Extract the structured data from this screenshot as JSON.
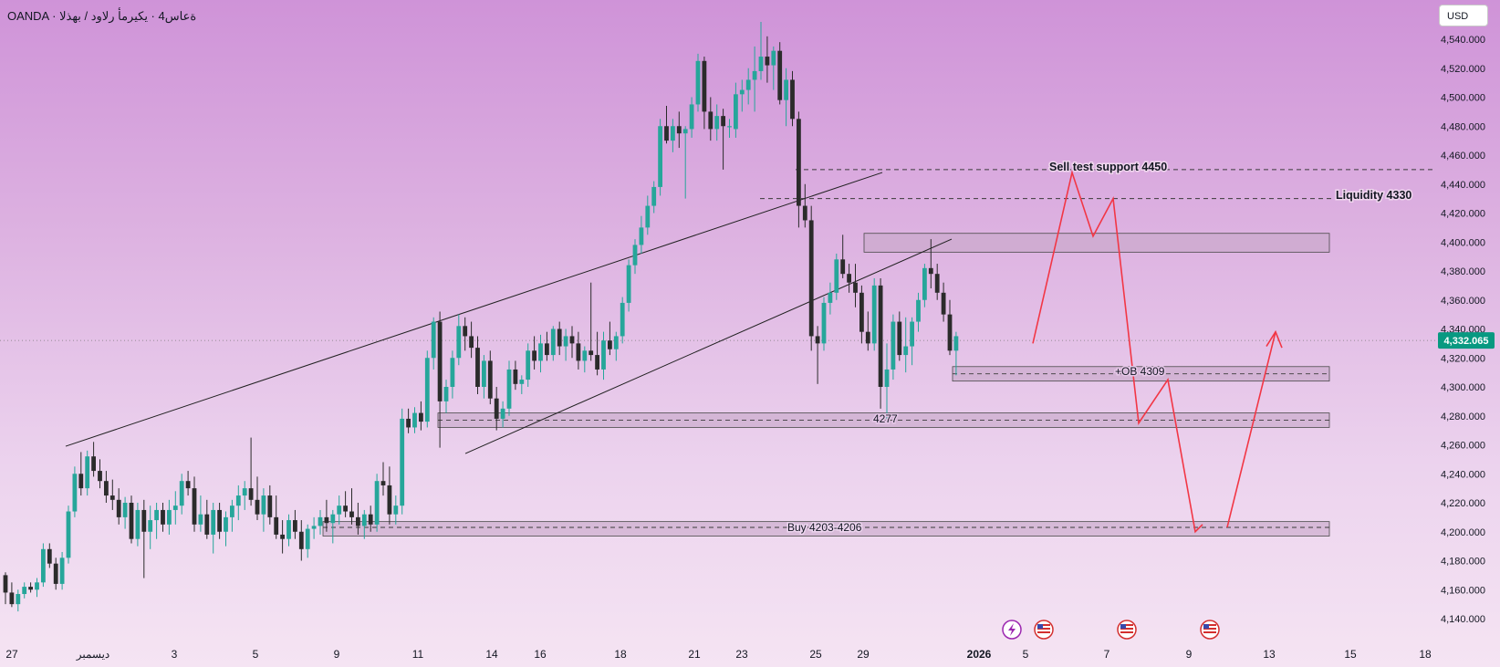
{
  "header": {
    "title": "OANDA · ةعاس4 · يكيرمأ رلاود / بهذلا"
  },
  "currency_button": {
    "label": "USD"
  },
  "chart_data": {
    "type": "candlestick",
    "ylim": [
      4128,
      4560
    ],
    "y_ticks": [
      4540,
      4520,
      4500,
      4480,
      4460,
      4440,
      4420,
      4400,
      4380,
      4360,
      4340,
      4320,
      4300,
      4280,
      4260,
      4240,
      4220,
      4200,
      4180,
      4160,
      4140
    ],
    "y_tick_labels": [
      "4,540.000",
      "4,520.000",
      "4,500.000",
      "4,480.000",
      "4,460.000",
      "4,440.000",
      "4,420.000",
      "4,400.000",
      "4,380.000",
      "4,360.000",
      "4,340.000",
      "4,320.000",
      "4,300.000",
      "4,280.000",
      "4,260.000",
      "4,240.000",
      "4,220.000",
      "4,200.000",
      "4,180.000",
      "4,160.000",
      "4,140.000"
    ],
    "x_ticks": [
      {
        "label": "27",
        "bold": false
      },
      {
        "label": "ديسمبر",
        "bold": false
      },
      {
        "label": "3",
        "bold": false
      },
      {
        "label": "5",
        "bold": false
      },
      {
        "label": "9",
        "bold": false
      },
      {
        "label": "11",
        "bold": false
      },
      {
        "label": "14",
        "bold": false
      },
      {
        "label": "16",
        "bold": false
      },
      {
        "label": "18",
        "bold": false
      },
      {
        "label": "21",
        "bold": false
      },
      {
        "label": "23",
        "bold": false
      },
      {
        "label": "25",
        "bold": false
      },
      {
        "label": "29",
        "bold": false
      },
      {
        "label": "2026",
        "bold": true
      },
      {
        "label": "5",
        "bold": false
      },
      {
        "label": "7",
        "bold": false
      },
      {
        "label": "9",
        "bold": false
      },
      {
        "label": "13",
        "bold": false
      },
      {
        "label": "15",
        "bold": false
      },
      {
        "label": "18",
        "bold": false
      }
    ],
    "current_price": {
      "value": 4332.065,
      "label": "4,332.065"
    },
    "colors": {
      "up": "#26a69a",
      "down": "#2b2b2b",
      "projection": "#f23645",
      "last_price": "#089981",
      "zone_fill": "#c6a6c8",
      "zone_border": "#4a4a4a"
    },
    "candles": [
      [
        4170,
        4172,
        4150,
        4158
      ],
      [
        4158,
        4165,
        4148,
        4150
      ],
      [
        4150,
        4160,
        4145,
        4157
      ],
      [
        4157,
        4165,
        4154,
        4162
      ],
      [
        4162,
        4165,
        4158,
        4160
      ],
      [
        4160,
        4168,
        4155,
        4165
      ],
      [
        4165,
        4192,
        4162,
        4188
      ],
      [
        4188,
        4192,
        4175,
        4178
      ],
      [
        4178,
        4182,
        4160,
        4164
      ],
      [
        4164,
        4186,
        4160,
        4182
      ],
      [
        4182,
        4218,
        4178,
        4214
      ],
      [
        4214,
        4245,
        4210,
        4240
      ],
      [
        4240,
        4255,
        4225,
        4230
      ],
      [
        4230,
        4256,
        4225,
        4252
      ],
      [
        4252,
        4262,
        4238,
        4242
      ],
      [
        4242,
        4250,
        4230,
        4235
      ],
      [
        4235,
        4242,
        4220,
        4225
      ],
      [
        4225,
        4236,
        4215,
        4222
      ],
      [
        4222,
        4230,
        4205,
        4210
      ],
      [
        4210,
        4224,
        4202,
        4220
      ],
      [
        4220,
        4225,
        4192,
        4195
      ],
      [
        4195,
        4220,
        4190,
        4215
      ],
      [
        4215,
        4222,
        4168,
        4200
      ],
      [
        4200,
        4218,
        4188,
        4208
      ],
      [
        4208,
        4220,
        4195,
        4215
      ],
      [
        4215,
        4220,
        4200,
        4205
      ],
      [
        4205,
        4222,
        4198,
        4215
      ],
      [
        4215,
        4228,
        4205,
        4218
      ],
      [
        4218,
        4240,
        4212,
        4235
      ],
      [
        4235,
        4242,
        4225,
        4230
      ],
      [
        4230,
        4238,
        4200,
        4205
      ],
      [
        4205,
        4225,
        4200,
        4212
      ],
      [
        4212,
        4222,
        4195,
        4198
      ],
      [
        4198,
        4220,
        4185,
        4215
      ],
      [
        4215,
        4220,
        4195,
        4200
      ],
      [
        4200,
        4214,
        4190,
        4210
      ],
      [
        4210,
        4222,
        4200,
        4218
      ],
      [
        4218,
        4232,
        4208,
        4225
      ],
      [
        4225,
        4235,
        4215,
        4230
      ],
      [
        4230,
        4265,
        4218,
        4222
      ],
      [
        4222,
        4238,
        4208,
        4212
      ],
      [
        4212,
        4230,
        4200,
        4225
      ],
      [
        4225,
        4232,
        4205,
        4210
      ],
      [
        4210,
        4225,
        4195,
        4198
      ],
      [
        4198,
        4208,
        4185,
        4195
      ],
      [
        4195,
        4212,
        4190,
        4208
      ],
      [
        4208,
        4215,
        4195,
        4200
      ],
      [
        4200,
        4208,
        4180,
        4188
      ],
      [
        4188,
        4205,
        4182,
        4202
      ],
      [
        4202,
        4210,
        4195,
        4204
      ],
      [
        4204,
        4215,
        4198,
        4210
      ],
      [
        4210,
        4222,
        4200,
        4206
      ],
      [
        4206,
        4215,
        4192,
        4212
      ],
      [
        4212,
        4225,
        4205,
        4218
      ],
      [
        4218,
        4228,
        4210,
        4214
      ],
      [
        4214,
        4230,
        4205,
        4210
      ],
      [
        4210,
        4220,
        4198,
        4204
      ],
      [
        4204,
        4215,
        4195,
        4212
      ],
      [
        4212,
        4218,
        4200,
        4205
      ],
      [
        4205,
        4240,
        4200,
        4235
      ],
      [
        4235,
        4248,
        4225,
        4232
      ],
      [
        4232,
        4245,
        4205,
        4212
      ],
      [
        4212,
        4225,
        4205,
        4218
      ],
      [
        4218,
        4285,
        4212,
        4278
      ],
      [
        4278,
        4285,
        4268,
        4272
      ],
      [
        4272,
        4286,
        4268,
        4282
      ],
      [
        4282,
        4290,
        4270,
        4276
      ],
      [
        4276,
        4325,
        4272,
        4320
      ],
      [
        4320,
        4348,
        4312,
        4345
      ],
      [
        4345,
        4352,
        4258,
        4290
      ],
      [
        4290,
        4305,
        4282,
        4300
      ],
      [
        4300,
        4325,
        4292,
        4320
      ],
      [
        4320,
        4350,
        4315,
        4342
      ],
      [
        4342,
        4348,
        4325,
        4335
      ],
      [
        4335,
        4345,
        4320,
        4327
      ],
      [
        4327,
        4335,
        4295,
        4300
      ],
      [
        4300,
        4322,
        4292,
        4318
      ],
      [
        4318,
        4325,
        4288,
        4292
      ],
      [
        4292,
        4300,
        4270,
        4278
      ],
      [
        4278,
        4290,
        4272,
        4285
      ],
      [
        4285,
        4318,
        4280,
        4312
      ],
      [
        4312,
        4318,
        4298,
        4302
      ],
      [
        4302,
        4308,
        4295,
        4305
      ],
      [
        4305,
        4330,
        4300,
        4325
      ],
      [
        4325,
        4335,
        4312,
        4318
      ],
      [
        4318,
        4336,
        4310,
        4330
      ],
      [
        4330,
        4338,
        4318,
        4322
      ],
      [
        4322,
        4342,
        4318,
        4340
      ],
      [
        4340,
        4345,
        4322,
        4328
      ],
      [
        4328,
        4340,
        4318,
        4335
      ],
      [
        4335,
        4342,
        4320,
        4330
      ],
      [
        4330,
        4338,
        4312,
        4318
      ],
      [
        4318,
        4328,
        4310,
        4325
      ],
      [
        4325,
        4372,
        4318,
        4322
      ],
      [
        4322,
        4338,
        4308,
        4312
      ],
      [
        4312,
        4338,
        4305,
        4332
      ],
      [
        4332,
        4345,
        4322,
        4326
      ],
      [
        4326,
        4338,
        4318,
        4335
      ],
      [
        4335,
        4362,
        4330,
        4358
      ],
      [
        4358,
        4388,
        4352,
        4384
      ],
      [
        4384,
        4402,
        4378,
        4398
      ],
      [
        4398,
        4418,
        4392,
        4410
      ],
      [
        4410,
        4432,
        4405,
        4425
      ],
      [
        4425,
        4442,
        4420,
        4438
      ],
      [
        4438,
        4485,
        4432,
        4480
      ],
      [
        4480,
        4494,
        4468,
        4470
      ],
      [
        4470,
        4485,
        4462,
        4480
      ],
      [
        4480,
        4490,
        4465,
        4475
      ],
      [
        4475,
        4480,
        4430,
        4478
      ],
      [
        4478,
        4500,
        4472,
        4495
      ],
      [
        4495,
        4530,
        4490,
        4525
      ],
      [
        4525,
        4528,
        4478,
        4490
      ],
      [
        4490,
        4500,
        4470,
        4478
      ],
      [
        4478,
        4495,
        4470,
        4487
      ],
      [
        4487,
        4492,
        4450,
        4480
      ],
      [
        4480,
        4485,
        4472,
        4480
      ],
      [
        4478,
        4510,
        4472,
        4502
      ],
      [
        4502,
        4512,
        4490,
        4505
      ],
      [
        4505,
        4520,
        4495,
        4512
      ],
      [
        4512,
        4535,
        4490,
        4518
      ],
      [
        4518,
        4552,
        4512,
        4528
      ],
      [
        4528,
        4542,
        4510,
        4522
      ],
      [
        4522,
        4535,
        4505,
        4532
      ],
      [
        4532,
        4538,
        4495,
        4498
      ],
      [
        4498,
        4520,
        4480,
        4512
      ],
      [
        4512,
        4518,
        4480,
        4485
      ],
      [
        4485,
        4490,
        4410,
        4425
      ],
      [
        4425,
        4440,
        4410,
        4415
      ],
      [
        4415,
        4425,
        4325,
        4335
      ],
      [
        4335,
        4342,
        4302,
        4330
      ],
      [
        4330,
        4362,
        4325,
        4358
      ],
      [
        4358,
        4372,
        4350,
        4365
      ],
      [
        4365,
        4392,
        4360,
        4388
      ],
      [
        4388,
        4405,
        4375,
        4378
      ],
      [
        4378,
        4385,
        4365,
        4372
      ],
      [
        4372,
        4385,
        4355,
        4365
      ],
      [
        4365,
        4370,
        4330,
        4338
      ],
      [
        4338,
        4352,
        4325,
        4330
      ],
      [
        4330,
        4375,
        4325,
        4370
      ],
      [
        4370,
        4375,
        4285,
        4300
      ],
      [
        4300,
        4330,
        4275,
        4312
      ],
      [
        4312,
        4350,
        4305,
        4345
      ],
      [
        4345,
        4352,
        4318,
        4322
      ],
      [
        4322,
        4348,
        4310,
        4328
      ],
      [
        4328,
        4348,
        4315,
        4345
      ],
      [
        4345,
        4365,
        4338,
        4360
      ],
      [
        4360,
        4385,
        4355,
        4382
      ],
      [
        4382,
        4402,
        4368,
        4378
      ],
      [
        4378,
        4385,
        4360,
        4365
      ],
      [
        4365,
        4372,
        4345,
        4350
      ],
      [
        4350,
        4360,
        4322,
        4325
      ],
      [
        4325,
        4338,
        4308,
        4335
      ]
    ]
  },
  "annotations": {
    "sell_test": "Sell test support 4450",
    "liquidity": "Liquidity 4330",
    "ob": "+OB 4309",
    "support": "4277",
    "buy": "Buy 4203-4206"
  }
}
